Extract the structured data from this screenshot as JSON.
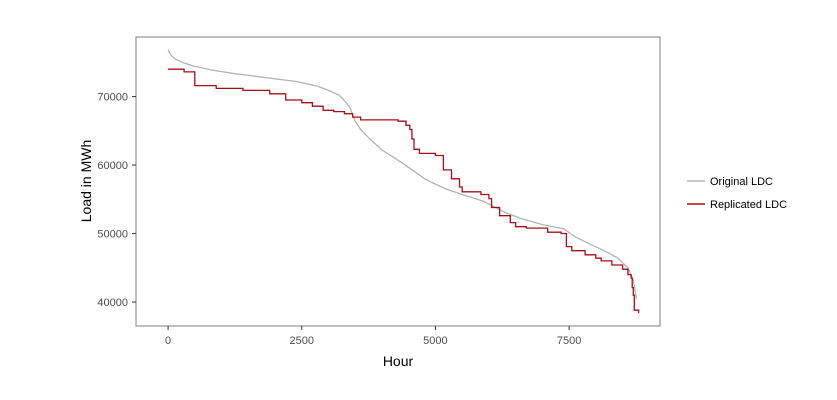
{
  "chart_data": {
    "type": "line",
    "xlabel": "Hour",
    "ylabel": "Load in MWh",
    "xlim": [
      -600,
      9200
    ],
    "ylim": [
      36500,
      78700
    ],
    "x_ticks": [
      0,
      2500,
      5000,
      7500
    ],
    "x_tick_labels": [
      "0",
      "2500",
      "5000",
      "7500"
    ],
    "y_ticks": [
      40000,
      50000,
      60000,
      70000
    ],
    "y_tick_labels": [
      "40000",
      "50000",
      "60000",
      "70000"
    ],
    "grid": false,
    "legend_position": "right",
    "series": [
      {
        "name": "Original LDC",
        "color": "#b3b3b3",
        "step": false,
        "points": [
          [
            0,
            76800
          ],
          [
            60,
            76000
          ],
          [
            150,
            75400
          ],
          [
            300,
            74900
          ],
          [
            500,
            74400
          ],
          [
            800,
            73900
          ],
          [
            1200,
            73400
          ],
          [
            1600,
            73000
          ],
          [
            2000,
            72600
          ],
          [
            2400,
            72200
          ],
          [
            2800,
            71500
          ],
          [
            3000,
            70900
          ],
          [
            3200,
            70200
          ],
          [
            3300,
            69400
          ],
          [
            3400,
            68400
          ],
          [
            3500,
            66400
          ],
          [
            3600,
            65200
          ],
          [
            3800,
            63600
          ],
          [
            4000,
            62200
          ],
          [
            4200,
            61200
          ],
          [
            4400,
            60200
          ],
          [
            4600,
            59100
          ],
          [
            4800,
            58000
          ],
          [
            5000,
            57200
          ],
          [
            5200,
            56500
          ],
          [
            5500,
            55700
          ],
          [
            5700,
            55200
          ],
          [
            5900,
            54700
          ],
          [
            6100,
            53900
          ],
          [
            6300,
            53100
          ],
          [
            6600,
            52200
          ],
          [
            7000,
            51300
          ],
          [
            7400,
            50700
          ],
          [
            7600,
            49600
          ],
          [
            7800,
            48800
          ],
          [
            8100,
            47700
          ],
          [
            8400,
            46500
          ],
          [
            8600,
            45000
          ],
          [
            8700,
            43200
          ],
          [
            8760,
            40500
          ]
        ]
      },
      {
        "name": "Replicated LDC",
        "color": "#a50f15",
        "step": true,
        "points": [
          [
            0,
            74000
          ],
          [
            300,
            73600
          ],
          [
            500,
            71600
          ],
          [
            900,
            71200
          ],
          [
            1400,
            70900
          ],
          [
            1900,
            70400
          ],
          [
            2200,
            69500
          ],
          [
            2500,
            69100
          ],
          [
            2700,
            68600
          ],
          [
            2900,
            68000
          ],
          [
            3100,
            67800
          ],
          [
            3300,
            67500
          ],
          [
            3450,
            67000
          ],
          [
            3600,
            66600
          ],
          [
            4300,
            66400
          ],
          [
            4450,
            65800
          ],
          [
            4520,
            65200
          ],
          [
            4560,
            63800
          ],
          [
            4600,
            62300
          ],
          [
            4700,
            61700
          ],
          [
            5000,
            61400
          ],
          [
            5150,
            59300
          ],
          [
            5300,
            58000
          ],
          [
            5450,
            56800
          ],
          [
            5500,
            56100
          ],
          [
            5850,
            55700
          ],
          [
            6000,
            55100
          ],
          [
            6050,
            53800
          ],
          [
            6200,
            52600
          ],
          [
            6400,
            51600
          ],
          [
            6500,
            51000
          ],
          [
            6700,
            50800
          ],
          [
            7100,
            50200
          ],
          [
            7350,
            50000
          ],
          [
            7450,
            48100
          ],
          [
            7550,
            47500
          ],
          [
            7800,
            46900
          ],
          [
            8000,
            46400
          ],
          [
            8100,
            46000
          ],
          [
            8300,
            45400
          ],
          [
            8500,
            44800
          ],
          [
            8600,
            44000
          ],
          [
            8660,
            43500
          ],
          [
            8680,
            42100
          ],
          [
            8700,
            41000
          ],
          [
            8720,
            38800
          ],
          [
            8800,
            38400
          ]
        ]
      }
    ]
  }
}
